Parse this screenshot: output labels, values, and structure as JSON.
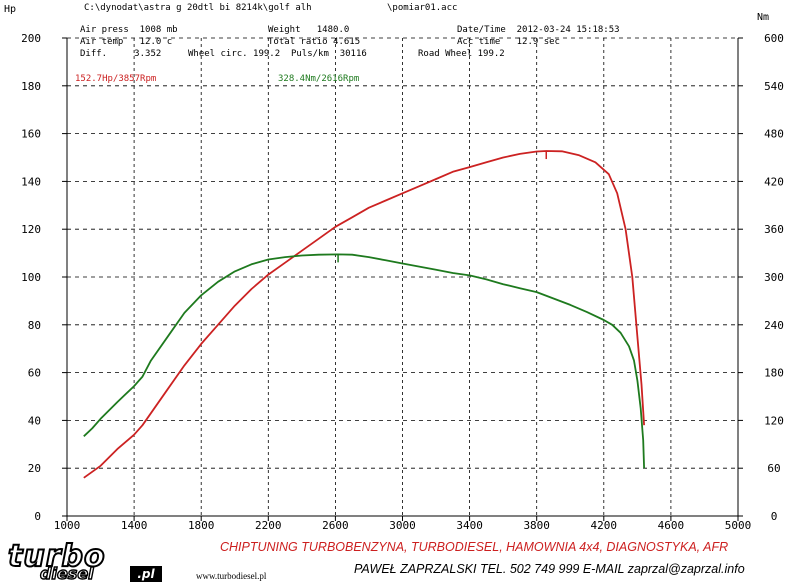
{
  "header": {
    "file_path": "C:\\dynodat\\astra g 20dtl bi 8214k\\golf alh",
    "file_name": "\\pomiar01.acc",
    "row1_left": "Air press  1008 mb",
    "row1_mid": "Weight   1480.0",
    "row1_right": "Date/Time  2012-03-24 15:18:53",
    "row2_left": "Air temp   12.0 c",
    "row2_mid": "Total ratio 4.615",
    "row2_right": "Acc time   12.9 sec",
    "row3_left": "Diff.     3.352",
    "row3_mid": "Wheel circ. 199.2  Puls/km  30116",
    "row3_right": "Road Wheel 199.2"
  },
  "peaks": {
    "power": "152.7Hp/3857Rpm",
    "torque": "328.4Nm/2616Rpm"
  },
  "footer": {
    "logo_top": "turbo",
    "logo_bottom": "diesel",
    "logo_suffix": ".pl",
    "website": "www.turbodiesel.pl",
    "line1": "CHIPTUNING TURBOBENZYNA, TURBODIESEL, HAMOWNIA 4x4, DIAGNOSTYKA, AFR",
    "line2": "PAWEŁ ZAPRZALSKI TEL. 502 749 999 E-MAIL zaprzal@zaprzal.info"
  },
  "colors": {
    "power": "#cc2222",
    "torque": "#1e7a1e",
    "footer_red": "#cc1f1f"
  },
  "chart_data": {
    "type": "line",
    "x_unit": "Rpm",
    "xlim": [
      1000,
      5000
    ],
    "x_ticks": [
      1000,
      1400,
      1800,
      2200,
      2600,
      3000,
      3400,
      3800,
      4200,
      4600,
      5000
    ],
    "left_axis": {
      "label": "Hp",
      "ylim": [
        0,
        200
      ],
      "ticks": [
        0,
        20,
        40,
        60,
        80,
        100,
        120,
        140,
        160,
        180,
        200
      ]
    },
    "right_axis": {
      "label": "Nm",
      "ylim": [
        0,
        600
      ],
      "ticks": [
        0,
        60,
        120,
        180,
        240,
        300,
        360,
        420,
        480,
        540,
        600
      ]
    },
    "grid": true,
    "series": [
      {
        "axis": "left",
        "points": [
          [
            1100,
            16
          ],
          [
            1200,
            21
          ],
          [
            1300,
            28
          ],
          [
            1400,
            34
          ],
          [
            1450,
            38
          ],
          [
            1500,
            43
          ],
          [
            1600,
            53
          ],
          [
            1700,
            63
          ],
          [
            1800,
            72
          ],
          [
            1900,
            80
          ],
          [
            2000,
            88
          ],
          [
            2100,
            95
          ],
          [
            2200,
            101
          ],
          [
            2300,
            106
          ],
          [
            2400,
            111
          ],
          [
            2500,
            116
          ],
          [
            2600,
            121
          ],
          [
            2700,
            125
          ],
          [
            2800,
            129
          ],
          [
            2900,
            132
          ],
          [
            3000,
            135
          ],
          [
            3100,
            138
          ],
          [
            3200,
            141
          ],
          [
            3300,
            144
          ],
          [
            3400,
            146
          ],
          [
            3500,
            148
          ],
          [
            3600,
            150
          ],
          [
            3700,
            151.5
          ],
          [
            3800,
            152.5
          ],
          [
            3857,
            152.7
          ],
          [
            3950,
            152.6
          ],
          [
            4050,
            151
          ],
          [
            4150,
            148
          ],
          [
            4230,
            143
          ],
          [
            4280,
            135
          ],
          [
            4330,
            120
          ],
          [
            4370,
            100
          ],
          [
            4400,
            75
          ],
          [
            4425,
            55
          ],
          [
            4440,
            38
          ]
        ],
        "marker_x": 3857
      },
      {
        "axis": "right",
        "points": [
          [
            1100,
            100
          ],
          [
            1150,
            110
          ],
          [
            1200,
            122
          ],
          [
            1300,
            143
          ],
          [
            1400,
            163
          ],
          [
            1450,
            175
          ],
          [
            1500,
            195
          ],
          [
            1600,
            225
          ],
          [
            1700,
            255
          ],
          [
            1800,
            277
          ],
          [
            1900,
            294
          ],
          [
            2000,
            307
          ],
          [
            2100,
            316
          ],
          [
            2200,
            322
          ],
          [
            2300,
            325
          ],
          [
            2400,
            327
          ],
          [
            2500,
            328
          ],
          [
            2616,
            328.4
          ],
          [
            2700,
            328
          ],
          [
            2800,
            325
          ],
          [
            2900,
            321
          ],
          [
            3000,
            317
          ],
          [
            3100,
            313
          ],
          [
            3200,
            309
          ],
          [
            3300,
            305
          ],
          [
            3400,
            302
          ],
          [
            3500,
            297
          ],
          [
            3600,
            291
          ],
          [
            3700,
            286
          ],
          [
            3800,
            281
          ],
          [
            3900,
            273
          ],
          [
            4000,
            265
          ],
          [
            4100,
            256
          ],
          [
            4200,
            246
          ],
          [
            4250,
            240
          ],
          [
            4300,
            230
          ],
          [
            4350,
            213
          ],
          [
            4380,
            195
          ],
          [
            4400,
            170
          ],
          [
            4420,
            135
          ],
          [
            4435,
            95
          ],
          [
            4440,
            60
          ]
        ],
        "marker_x": 2616
      }
    ]
  }
}
